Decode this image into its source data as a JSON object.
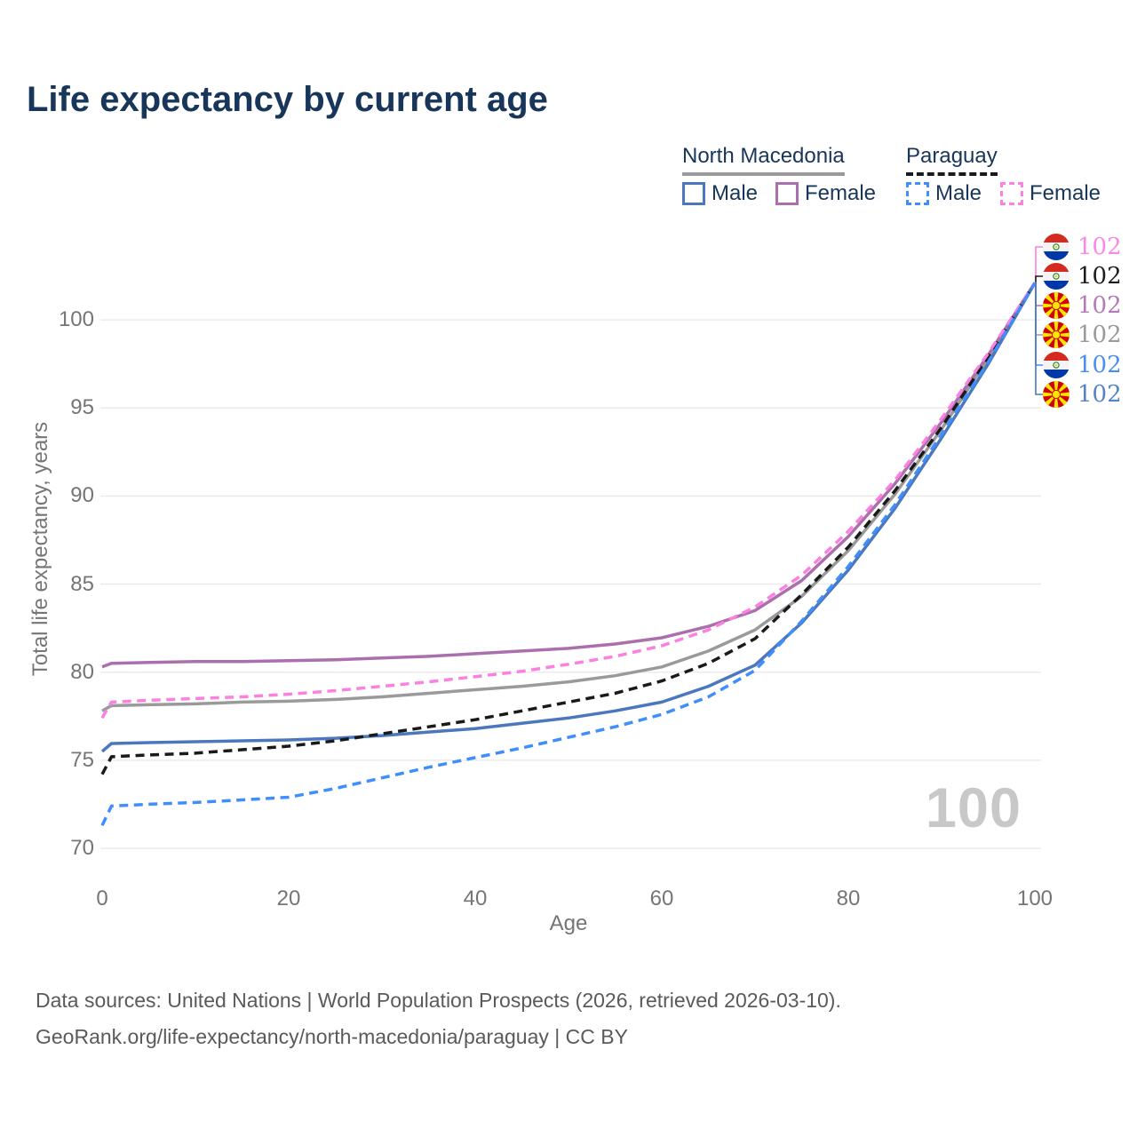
{
  "title": "Life expectancy by current age",
  "watermark": "100",
  "legend": {
    "groups": [
      {
        "name": "North Macedonia",
        "line_style": "solid",
        "underline_color": "#9a9a9a",
        "items": [
          {
            "label": "Male",
            "color": "#4a77bd",
            "dashed": false
          },
          {
            "label": "Female",
            "color": "#ab6fad",
            "dashed": false
          }
        ]
      },
      {
        "name": "Paraguay",
        "line_style": "dashed",
        "underline_color": "#1a1a1a",
        "items": [
          {
            "label": "Male",
            "color": "#3f8efc",
            "dashed": true
          },
          {
            "label": "Female",
            "color": "#fc80e0",
            "dashed": true
          }
        ]
      }
    ]
  },
  "chart_data": {
    "type": "line",
    "title": "Life expectancy by current age",
    "xlabel": "Age",
    "ylabel": "Total life expectancy, years",
    "xlim": [
      0,
      100
    ],
    "ylim": [
      70,
      102.5
    ],
    "x_ticks": [
      0,
      20,
      40,
      60,
      80,
      100
    ],
    "y_ticks": [
      70,
      75,
      80,
      85,
      90,
      95,
      100
    ],
    "grid": "horizontal-only",
    "legend_position": "top-right",
    "x": [
      0,
      1,
      5,
      10,
      15,
      20,
      25,
      30,
      35,
      40,
      45,
      50,
      55,
      60,
      65,
      70,
      75,
      80,
      85,
      90,
      95,
      100
    ],
    "series": [
      {
        "name": "North Macedonia Both sexes",
        "country": "North Macedonia",
        "sex": "both",
        "color": "#9a9a9a",
        "dashed": false,
        "values": [
          77.8,
          78.1,
          78.15,
          78.2,
          78.3,
          78.35,
          78.45,
          78.6,
          78.8,
          79.0,
          79.2,
          79.45,
          79.8,
          80.3,
          81.2,
          82.4,
          84.3,
          86.9,
          90.1,
          93.8,
          97.8,
          102.1
        ]
      },
      {
        "name": "North Macedonia Female",
        "country": "North Macedonia",
        "sex": "female",
        "color": "#ab6fad",
        "dashed": false,
        "values": [
          80.3,
          80.5,
          80.55,
          80.6,
          80.6,
          80.65,
          80.7,
          80.8,
          80.9,
          81.05,
          81.2,
          81.35,
          81.6,
          81.95,
          82.6,
          83.5,
          85.2,
          87.7,
          90.7,
          94.2,
          98.0,
          102.1
        ]
      },
      {
        "name": "North Macedonia Male",
        "country": "North Macedonia",
        "sex": "male",
        "color": "#4a77bd",
        "dashed": false,
        "values": [
          75.5,
          75.95,
          76.0,
          76.05,
          76.1,
          76.15,
          76.25,
          76.4,
          76.6,
          76.8,
          77.1,
          77.4,
          77.8,
          78.3,
          79.2,
          80.4,
          82.8,
          85.8,
          89.3,
          93.3,
          97.5,
          102.1
        ]
      },
      {
        "name": "Paraguay Both sexes",
        "country": "Paraguay",
        "sex": "both",
        "color": "#1a1a1a",
        "dashed": true,
        "values": [
          74.2,
          75.2,
          75.3,
          75.4,
          75.6,
          75.8,
          76.1,
          76.5,
          76.9,
          77.3,
          77.8,
          78.3,
          78.8,
          79.5,
          80.5,
          81.9,
          84.4,
          87.1,
          90.3,
          93.9,
          97.9,
          102.1
        ]
      },
      {
        "name": "Paraguay Female",
        "country": "Paraguay",
        "sex": "female",
        "color": "#fc80e0",
        "dashed": true,
        "values": [
          77.4,
          78.3,
          78.4,
          78.5,
          78.6,
          78.75,
          78.95,
          79.2,
          79.45,
          79.75,
          80.05,
          80.45,
          80.9,
          81.5,
          82.4,
          83.7,
          85.5,
          88.0,
          90.9,
          94.4,
          98.1,
          102.1
        ]
      },
      {
        "name": "Paraguay Male",
        "country": "Paraguay",
        "sex": "male",
        "color": "#3f8efc",
        "dashed": true,
        "values": [
          71.3,
          72.4,
          72.5,
          72.6,
          72.75,
          72.9,
          73.4,
          74.0,
          74.6,
          75.15,
          75.7,
          76.3,
          76.9,
          77.6,
          78.6,
          80.1,
          82.9,
          86.0,
          89.5,
          93.5,
          97.6,
          102.1
        ]
      }
    ],
    "end_labels": [
      {
        "value": "102",
        "series": "Paraguay Female",
        "flag": "py",
        "text_color": "#fb87e7"
      },
      {
        "value": "102",
        "series": "Paraguay Both sexes",
        "flag": "py",
        "text_color": "#1c1c1c"
      },
      {
        "value": "102",
        "series": "North Macedonia Female",
        "flag": "mk",
        "text_color": "#b57ab5"
      },
      {
        "value": "102",
        "series": "North Macedonia Both sexes",
        "flag": "mk",
        "text_color": "#9a9a9a"
      },
      {
        "value": "102",
        "series": "Paraguay Male",
        "flag": "py",
        "text_color": "#4b8ef0"
      },
      {
        "value": "102",
        "series": "North Macedonia Male",
        "flag": "mk",
        "text_color": "#5584c6"
      }
    ]
  },
  "footer": {
    "line1": "Data sources: United Nations | World Population Prospects (2026, retrieved 2026-03-10).",
    "line2": "GeoRank.org/life-expectancy/north-macedonia/paraguay | CC BY"
  }
}
